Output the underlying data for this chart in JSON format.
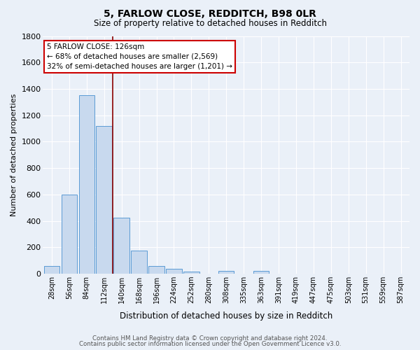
{
  "title1": "5, FARLOW CLOSE, REDDITCH, B98 0LR",
  "title2": "Size of property relative to detached houses in Redditch",
  "xlabel": "Distribution of detached houses by size in Redditch",
  "ylabel": "Number of detached properties",
  "footer1": "Contains HM Land Registry data © Crown copyright and database right 2024.",
  "footer2": "Contains public sector information licensed under the Open Government Licence v3.0.",
  "bin_labels": [
    "28sqm",
    "56sqm",
    "84sqm",
    "112sqm",
    "140sqm",
    "168sqm",
    "196sqm",
    "224sqm",
    "252sqm",
    "280sqm",
    "308sqm",
    "335sqm",
    "363sqm",
    "391sqm",
    "419sqm",
    "447sqm",
    "475sqm",
    "503sqm",
    "531sqm",
    "559sqm",
    "587sqm"
  ],
  "bar_values": [
    60,
    600,
    1350,
    1120,
    425,
    175,
    60,
    40,
    15,
    0,
    20,
    0,
    20,
    0,
    0,
    0,
    0,
    0,
    0,
    0,
    0
  ],
  "bar_color": "#c8d9ee",
  "bar_edge_color": "#5b9bd5",
  "bg_color": "#eaf0f8",
  "grid_color": "#ffffff",
  "vline_color": "#8b0000",
  "annotation_line1": "5 FARLOW CLOSE: 126sqm",
  "annotation_line2": "← 68% of detached houses are smaller (2,569)",
  "annotation_line3": "32% of semi-detached houses are larger (1,201) →",
  "annotation_box_color": "#ffffff",
  "annotation_box_edge": "#cc0000",
  "ylim": [
    0,
    1800
  ],
  "yticks": [
    0,
    200,
    400,
    600,
    800,
    1000,
    1200,
    1400,
    1600,
    1800
  ]
}
